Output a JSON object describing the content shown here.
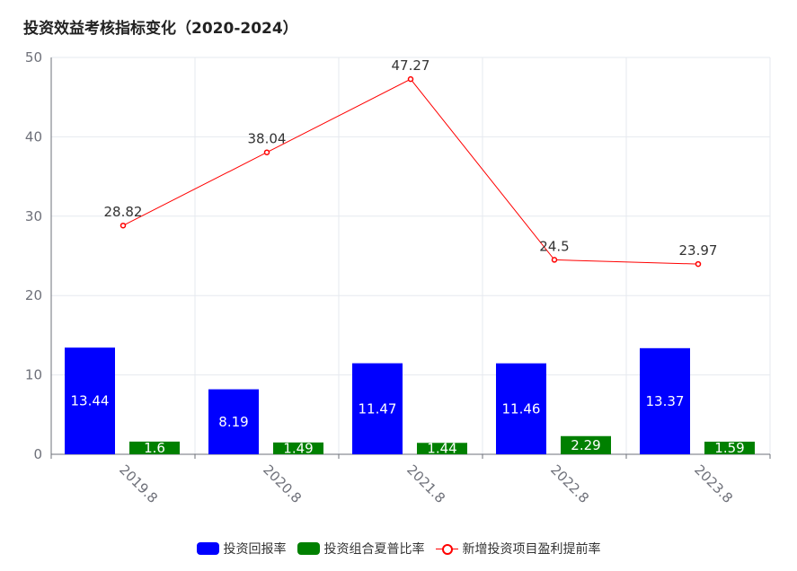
{
  "title": "投资效益考核指标变化（2020-2024）",
  "colors": {
    "bar1": "#0000ff",
    "bar2": "#008000",
    "line": "#ff0000",
    "grid": "#e6e9ef",
    "axis": "#6e7079"
  },
  "chart_data": {
    "type": "bar",
    "categories": [
      "2019.8",
      "2020.8",
      "2021.8",
      "2022.8",
      "2023.8"
    ],
    "series": [
      {
        "name": "投资回报率",
        "type": "bar",
        "values": [
          13.44,
          8.19,
          11.47,
          11.46,
          13.37
        ]
      },
      {
        "name": "投资组合夏普比率",
        "type": "bar",
        "values": [
          1.6,
          1.49,
          1.44,
          2.29,
          1.59
        ]
      },
      {
        "name": "新增投资项目盈利提前率",
        "type": "line",
        "values": [
          28.82,
          38.04,
          47.27,
          24.5,
          23.97
        ]
      }
    ],
    "ylim": [
      0,
      50
    ],
    "yticks": [
      0,
      10,
      20,
      30,
      40,
      50
    ],
    "grid": true,
    "legend_position": "bottom-center"
  }
}
